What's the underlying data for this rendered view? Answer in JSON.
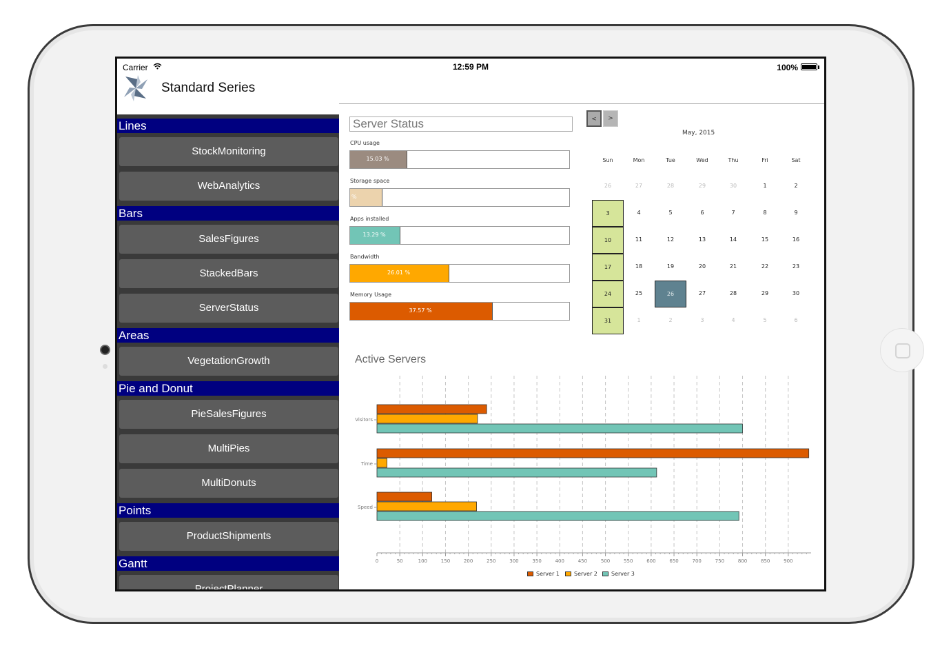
{
  "status_bar": {
    "carrier": "Carrier",
    "time": "12:59 PM",
    "battery": "100%"
  },
  "app": {
    "title": "Standard Series"
  },
  "sidebar": {
    "sections": [
      {
        "label": "Lines",
        "items": [
          "StockMonitoring",
          "WebAnalytics"
        ]
      },
      {
        "label": "Bars",
        "items": [
          "SalesFigures",
          "StackedBars",
          "ServerStatus"
        ]
      },
      {
        "label": "Areas",
        "items": [
          "VegetationGrowth"
        ]
      },
      {
        "label": "Pie and Donut",
        "items": [
          "PieSalesFigures",
          "MultiPies",
          "MultiDonuts"
        ]
      },
      {
        "label": "Points",
        "items": [
          "ProductShipments"
        ]
      },
      {
        "label": "Gantt",
        "items": [
          "ProjectPlanner"
        ]
      }
    ]
  },
  "server_status": {
    "title": "Server Status",
    "gauges": [
      {
        "label": "CPU usage",
        "value": 15.03,
        "text": "15.03 %",
        "color": "#9b8b80"
      },
      {
        "label": "Storage space",
        "value": 8.5,
        "text": "%",
        "color": "#ecd3ad"
      },
      {
        "label": "Apps installed",
        "value": 13.29,
        "text": "13.29 %",
        "color": "#72c5b6"
      },
      {
        "label": "Bandwidth",
        "value": 26.01,
        "text": "26.01 %",
        "color": "#ffa800"
      },
      {
        "label": "Memory Usage",
        "value": 37.57,
        "text": "37.57 %",
        "color": "#dc5b00"
      }
    ]
  },
  "calendar": {
    "prev_label": "<",
    "next_label": ">",
    "title": "May, 2015",
    "weekdays": [
      "Sun",
      "Mon",
      "Tue",
      "Wed",
      "Thu",
      "Fri",
      "Sat"
    ],
    "weeks": [
      [
        "26",
        "27",
        "28",
        "29",
        "30",
        "1",
        "2"
      ],
      [
        "3",
        "4",
        "5",
        "6",
        "7",
        "8",
        "9"
      ],
      [
        "10",
        "11",
        "12",
        "13",
        "14",
        "15",
        "16"
      ],
      [
        "17",
        "18",
        "19",
        "20",
        "21",
        "22",
        "23"
      ],
      [
        "24",
        "25",
        "26",
        "27",
        "28",
        "29",
        "30"
      ],
      [
        "31",
        "1",
        "2",
        "3",
        "4",
        "5",
        "6"
      ]
    ],
    "today": "26"
  },
  "chart_data": {
    "type": "bar",
    "orientation": "horizontal",
    "title": "Active Servers",
    "categories": [
      "Visitors",
      "Time",
      "Speed"
    ],
    "series": [
      {
        "name": "Server 1",
        "color": "#dc5b00",
        "values": [
          240,
          945,
          120
        ]
      },
      {
        "name": "Server 2",
        "color": "#ffa800",
        "values": [
          220,
          22,
          218
        ]
      },
      {
        "name": "Server 3",
        "color": "#72c5b6",
        "values": [
          800,
          612,
          792
        ]
      }
    ],
    "xlim": [
      0,
      950
    ],
    "xticks": [
      0,
      50,
      100,
      150,
      200,
      250,
      300,
      350,
      400,
      450,
      500,
      550,
      600,
      650,
      700,
      750,
      800,
      850,
      900
    ],
    "grid": "vertical dashed",
    "legend": "bottom"
  }
}
